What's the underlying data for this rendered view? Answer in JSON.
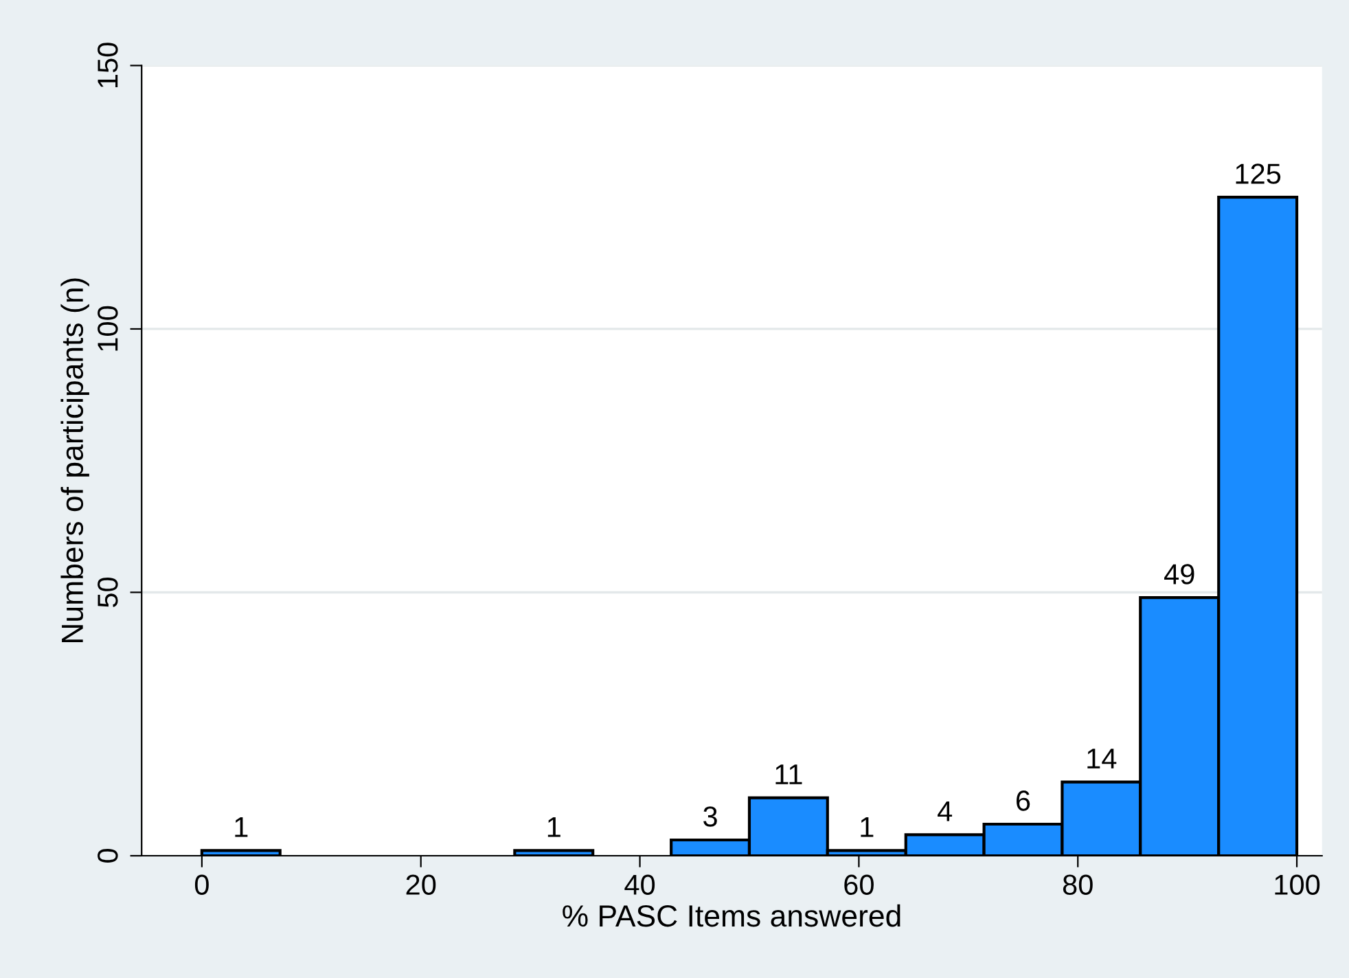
{
  "chart_data": {
    "type": "histogram",
    "xlabel": "% PASC Items answered",
    "ylabel": "Numbers of participants (n)",
    "bins": [
      0,
      7.14,
      14.29,
      21.43,
      28.57,
      35.71,
      42.86,
      50,
      57.14,
      64.29,
      71.43,
      78.57,
      85.71,
      92.86,
      100
    ],
    "values": [
      1,
      0,
      0,
      0,
      1,
      0,
      3,
      11,
      1,
      4,
      6,
      14,
      49,
      125
    ],
    "value_labels": [
      "1",
      null,
      null,
      null,
      "1",
      null,
      "3",
      "11",
      "1",
      "4",
      "6",
      "14",
      "49",
      "125"
    ],
    "color": "#1a8cff",
    "xlim": [
      -5.5,
      102.3
    ],
    "xticks": [
      0,
      20,
      40,
      60,
      80,
      100
    ],
    "ylim": [
      0,
      150
    ],
    "yticks": [
      0,
      50,
      100,
      150
    ],
    "grid": "y"
  }
}
